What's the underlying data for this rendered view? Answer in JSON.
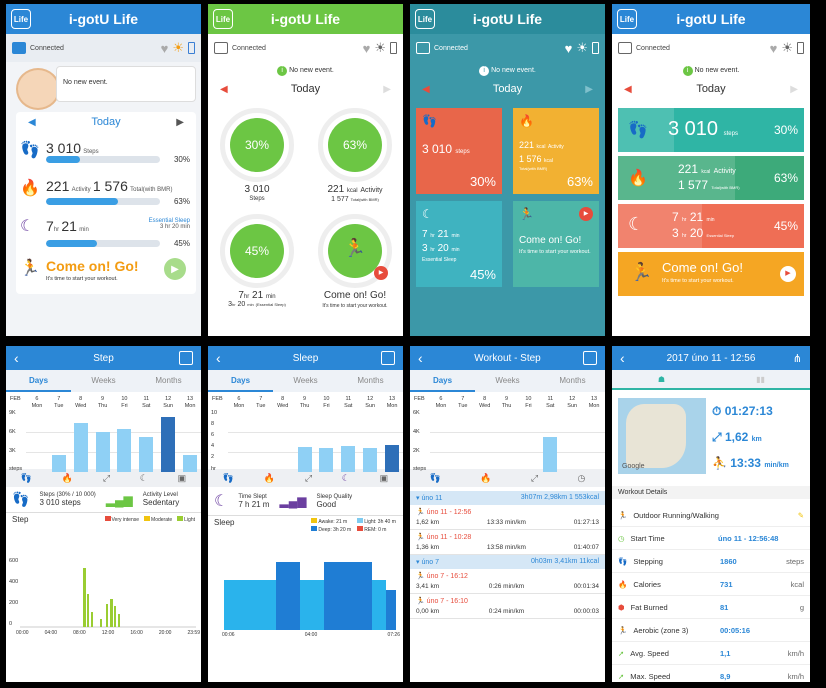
{
  "app": {
    "logo": "Life",
    "title": "i-gotU Life"
  },
  "status": {
    "connected": "Connected",
    "no_event": "No new event."
  },
  "today": "Today",
  "steps": {
    "value": "3 010",
    "unit": "Steps",
    "unit_lower": "steps",
    "pct": "30%",
    "pct_val": 0.3
  },
  "activity": {
    "kcal": "221",
    "label": "Activity",
    "kcal_unit": "kcal",
    "total": "1 576",
    "total2": "1 577",
    "total_label": "Total(with BMR)",
    "pct": "63%",
    "pct_val": 0.63
  },
  "sleep": {
    "hr": "7",
    "min": "21",
    "hr_unit": "hr",
    "min_unit": "min",
    "ess_hr": "3",
    "ess_min": "20",
    "label": "Essential Sleep",
    "small": "3 hr 20 min",
    "small_alt": "(Essential Sleep)",
    "pct": "45%",
    "pct_val": 0.45
  },
  "workout": {
    "title": "Come on! Go!",
    "sub": "It's time to start your workout."
  },
  "step_page": {
    "title": "Step",
    "tabs": [
      "Days",
      "Weeks",
      "Months"
    ],
    "month": "FEB",
    "days": [
      "6",
      "7",
      "8",
      "9",
      "10",
      "11",
      "12",
      "13"
    ],
    "wd": [
      "Mon",
      "Tue",
      "Wed",
      "Thu",
      "Fri",
      "Sat",
      "Sun",
      "Mon"
    ],
    "yticks": [
      "9K",
      "6K",
      "3K",
      "steps"
    ],
    "chart_data": {
      "type": "bar",
      "categories": [
        "6",
        "7",
        "8",
        "9",
        "10",
        "11",
        "12",
        "13"
      ],
      "values": [
        0,
        2600,
        7400,
        6000,
        6400,
        5300,
        8200,
        2600
      ],
      "ylim": [
        0,
        9000
      ]
    },
    "summary_label": "Steps (30% / 10 000)",
    "summary_val": "3 010 steps",
    "level_label": "Activity Level",
    "level_val": "Sedentary",
    "detail_title": "Step",
    "legend": [
      "Very intense",
      "Moderate",
      "Light"
    ],
    "legend_colors": [
      "#e74c3c",
      "#f1c40f",
      "#9acd32"
    ],
    "dyticks": [
      "600",
      "400",
      "200",
      "0"
    ],
    "xticks": [
      "00:00",
      "04:00",
      "08:00",
      "12:00",
      "16:00",
      "20:00",
      "23:59"
    ]
  },
  "sleep_page": {
    "title": "Sleep",
    "month": "FEB",
    "yticks": [
      "10",
      "8",
      "6",
      "4",
      "2",
      "hr"
    ],
    "chart_data": {
      "type": "bar",
      "categories": [
        "6",
        "7",
        "8",
        "9",
        "10",
        "11",
        "12",
        "13"
      ],
      "values": [
        0,
        0,
        0,
        4.2,
        4,
        4.3,
        4,
        4.5
      ],
      "ylim": [
        0,
        10
      ]
    },
    "time_label": "Time Slept",
    "time_val": "7 h 21 m",
    "quality_label": "Sleep Quality",
    "quality_val": "Good",
    "legend": [
      "Awake: 21 m",
      "Light: 3h 40 m",
      "Deep: 3h 20 m",
      "REM: 0 m"
    ],
    "legend_colors": [
      "#f1c40f",
      "#7ecbf0",
      "#1f7dd4",
      "#e74c3c"
    ],
    "detail_title": "Sleep",
    "xticks": [
      "00:06",
      "04:00",
      "07:26"
    ]
  },
  "workout_page": {
    "title": "Workout - Step",
    "month": "FEB",
    "yticks": [
      "6K",
      "4K",
      "2K",
      "steps"
    ],
    "chart_data": {
      "type": "bar",
      "categories": [
        "6",
        "7",
        "8",
        "9",
        "10",
        "11",
        "12",
        "13"
      ],
      "values": [
        0,
        0,
        0,
        0,
        0,
        3500,
        0,
        0
      ],
      "ylim": [
        0,
        6000
      ]
    },
    "groups": [
      {
        "day": "úno 11",
        "sum": "3h07m 2,98km 1 553kcal",
        "items": [
          {
            "time": "úno 11 - 12:56",
            "dist": "1,62 km",
            "pace": "13:33 min/km",
            "dur": "01:27:13"
          },
          {
            "time": "úno 11 - 10:28",
            "dist": "1,36 km",
            "pace": "13:58 min/km",
            "dur": "01:40:07"
          }
        ]
      },
      {
        "day": "úno 7",
        "sum": "0h03m 3,41km 11kcal",
        "items": [
          {
            "time": "úno 7 - 16:12",
            "dist": "3,41 km",
            "pace": "0:26 min/km",
            "dur": "00:01:34"
          },
          {
            "time": "úno 7 - 16:10",
            "dist": "0,00 km",
            "pace": "0:24 min/km",
            "dur": "00:00:03"
          }
        ]
      }
    ]
  },
  "detail_page": {
    "title": "2017 úno 11 - 12:56",
    "dur": "01:27:13",
    "dist": "1,62",
    "dist_u": "km",
    "pace": "13:33",
    "pace_u": "min/km",
    "map_brand": "Google",
    "section": "Workout Details",
    "type": "Outdoor Running/Walking",
    "rows": [
      {
        "k": "Start Time",
        "v": "úno 11 - 12:56:48",
        "u": ""
      },
      {
        "k": "Stepping",
        "v": "1860",
        "u": "steps"
      },
      {
        "k": "Calories",
        "v": "731",
        "u": "kcal"
      },
      {
        "k": "Fat Burned",
        "v": "81",
        "u": "g"
      },
      {
        "k": "Aerobic (zone 3)",
        "v": "00:05:16",
        "u": ""
      },
      {
        "k": "Avg. Speed",
        "v": "1,1",
        "u": "km/h"
      },
      {
        "k": "Max. Speed",
        "v": "8,9",
        "u": "km/h"
      }
    ]
  },
  "colors": {
    "blue": "#2b87d6",
    "green": "#6cc644",
    "teal": "#35a3a8",
    "orange": "#f39c12"
  }
}
